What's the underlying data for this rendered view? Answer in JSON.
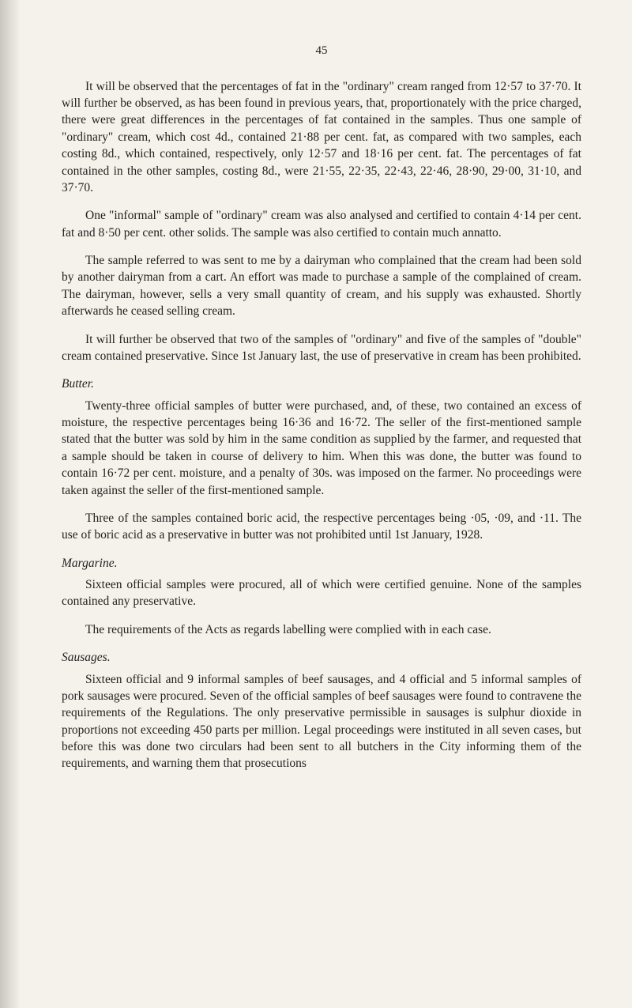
{
  "pageNumber": "45",
  "para1": "It will be observed that the percentages of fat in the \"ordinary\" cream ranged from 12·57 to 37·70. It will further be observed, as has been found in previous years, that, proportionately with the price charged, there were great differences in the percentages of fat contained in the samples. Thus one sample of \"ordinary\" cream, which cost 4d., contained 21·88 per cent. fat, as compared with two samples, each costing 8d., which contained, respectively, only 12·57 and 18·16 per cent. fat. The percentages of fat contained in the other samples, costing 8d., were 21·55, 22·35, 22·43, 22·46, 28·90, 29·00, 31·10, and 37·70.",
  "para2": "One \"informal\" sample of \"ordinary\" cream was also analysed and certified to contain 4·14 per cent. fat and 8·50 per cent. other solids. The sample was also certified to contain much annatto.",
  "para3": "The sample referred to was sent to me by a dairyman who complained that the cream had been sold by another dairyman from a cart. An effort was made to purchase a sample of the complained of cream. The dairyman, however, sells a very small quantity of cream, and his supply was exhausted. Shortly afterwards he ceased selling cream.",
  "para4": "It will further be observed that two of the samples of \"ordinary\" and five of the samples of \"double\" cream contained preservative. Since 1st January last, the use of preservative in cream has been prohibited.",
  "butter_heading": "Butter.",
  "butter_p1": "Twenty-three official samples of butter were purchased, and, of these, two contained an excess of moisture, the respective percentages being 16·36 and 16·72. The seller of the first-mentioned sample stated that the butter was sold by him in the same condition as supplied by the farmer, and requested that a sample should be taken in course of delivery to him. When this was done, the butter was found to contain 16·72 per cent. moisture, and a penalty of 30s. was imposed on the farmer. No proceedings were taken against the seller of the first-mentioned sample.",
  "butter_p2": "Three of the samples contained boric acid, the respective percentages being ·05, ·09, and ·11. The use of boric acid as a preservative in butter was not prohibited until 1st January, 1928.",
  "margarine_heading": "Margarine.",
  "margarine_p1": "Sixteen official samples were procured, all of which were certified genuine. None of the samples contained any preservative.",
  "margarine_p2": "The requirements of the Acts as regards labelling were complied with in each case.",
  "sausages_heading": "Sausages.",
  "sausages_p1": "Sixteen official and 9 informal samples of beef sausages, and 4 official and 5 informal samples of pork sausages were procured. Seven of the official samples of beef sausages were found to contravene the requirements of the Regulations. The only preservative permissible in sausages is sulphur dioxide in proportions not exceeding 450 parts per million. Legal proceedings were instituted in all seven cases, but before this was done two circulars had been sent to all butchers in the City informing them of the requirements, and warning them that prosecutions"
}
